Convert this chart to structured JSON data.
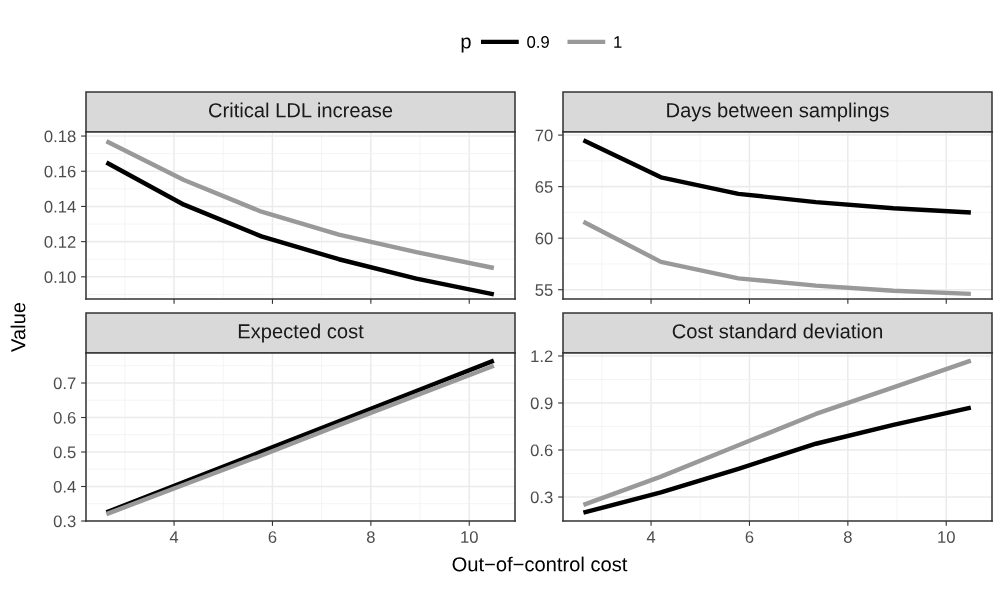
{
  "chart_data": [
    {
      "type": "line",
      "title": "Critical LDL increase",
      "ylabel": "Value",
      "legend_title": "p",
      "legend": "top",
      "grid": true,
      "tick_labels": "y",
      "x": [
        2.625,
        4.2,
        5.775,
        7.35,
        8.925,
        10.5
      ],
      "xlim": [
        2.21,
        10.93
      ],
      "xticks": [
        4,
        6,
        8,
        10
      ],
      "ylim": [
        0.0874,
        0.1823
      ],
      "yticks": [
        {
          "value": 0.1,
          "label": "0.10"
        },
        {
          "value": 0.12,
          "label": "0.12"
        },
        {
          "value": 0.14,
          "label": "0.14"
        },
        {
          "value": 0.16,
          "label": "0.16"
        },
        {
          "value": 0.18,
          "label": "0.18"
        }
      ],
      "series": [
        {
          "name": "0.9",
          "color": "#000000",
          "values": [
            0.165,
            0.141,
            0.123,
            0.11,
            0.099,
            0.09
          ]
        },
        {
          "name": "1",
          "color": "#999999",
          "values": [
            0.177,
            0.155,
            0.137,
            0.124,
            0.114,
            0.105
          ]
        }
      ]
    },
    {
      "type": "line",
      "title": "Days between samplings",
      "grid": true,
      "tick_labels": "y",
      "x": [
        2.625,
        4.2,
        5.775,
        7.35,
        8.925,
        10.5
      ],
      "xlim": [
        2.21,
        10.93
      ],
      "xticks": [
        4,
        6,
        8,
        10
      ],
      "ylim": [
        54.1,
        70.3
      ],
      "yticks": [
        55,
        60,
        65,
        70
      ],
      "series": [
        {
          "color": "#000000",
          "values": [
            69.5,
            65.9,
            64.3,
            63.5,
            62.9,
            62.5
          ]
        },
        {
          "color": "#999999",
          "values": [
            61.6,
            57.7,
            56.1,
            55.4,
            54.9,
            54.6
          ]
        }
      ]
    },
    {
      "type": "line",
      "title": "Expected cost",
      "xlabel": "Out−of−control cost",
      "grid": true,
      "x": [
        2.625,
        4.2,
        5.775,
        7.35,
        8.925,
        10.5
      ],
      "xlim": [
        2.21,
        10.93
      ],
      "xticks": [
        4,
        6,
        8,
        10
      ],
      "ylim": [
        0.3,
        0.787
      ],
      "yticks": [
        0.3,
        0.4,
        0.5,
        0.6,
        0.7
      ],
      "series": [
        {
          "color": "#000000",
          "values": [
            0.325,
            0.413,
            0.501,
            0.589,
            0.677,
            0.765
          ]
        },
        {
          "color": "#999999",
          "values": [
            0.32,
            0.405,
            0.49,
            0.578,
            0.664,
            0.75
          ]
        }
      ]
    },
    {
      "type": "line",
      "title": "Cost standard deviation",
      "grid": true,
      "x": [
        2.625,
        4.2,
        5.775,
        7.35,
        8.925,
        10.5
      ],
      "xlim": [
        2.21,
        10.93
      ],
      "xticks": [
        4,
        6,
        8,
        10
      ],
      "ylim": [
        0.147,
        1.219
      ],
      "yticks": [
        0.3,
        0.6,
        0.9,
        1.2
      ],
      "series": [
        {
          "color": "#000000",
          "values": [
            0.2,
            0.33,
            0.48,
            0.64,
            0.76,
            0.87
          ]
        },
        {
          "color": "#999999",
          "values": [
            0.25,
            0.43,
            0.63,
            0.83,
            1.0,
            1.17
          ]
        }
      ]
    }
  ]
}
